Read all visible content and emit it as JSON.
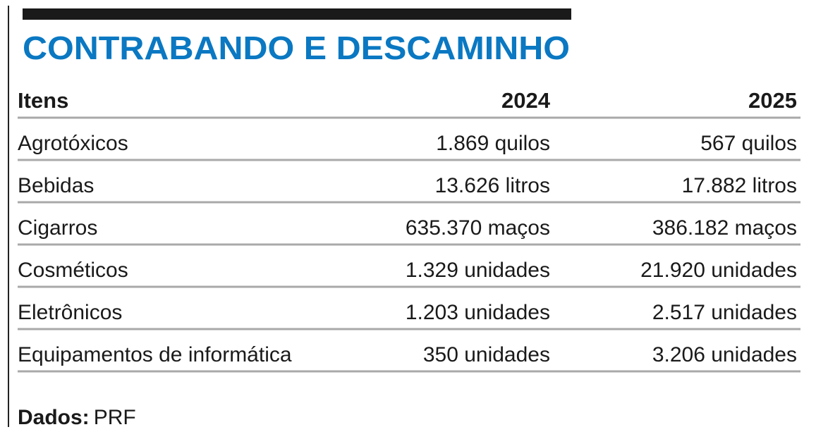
{
  "title": "CONTRABANDO E DESCAMINHO",
  "table": {
    "header": [
      "Itens",
      "2024",
      "2025"
    ],
    "rows": [
      [
        "Agrotóxicos",
        "1.869 quilos",
        "567 quilos"
      ],
      [
        "Bebidas",
        "13.626 litros",
        "17.882 litros"
      ],
      [
        "Cigarros",
        "635.370 maços",
        "386.182 maços"
      ],
      [
        "Cosméticos",
        "1.329 unidades",
        "21.920 unidades"
      ],
      [
        "Eletrônicos",
        "1.203 unidades",
        "2.517 unidades"
      ],
      [
        "Equipamentos de informática",
        "350 unidades",
        "3.206 unidades"
      ]
    ]
  },
  "source": {
    "label": "Dados:",
    "text": "PRF"
  }
}
